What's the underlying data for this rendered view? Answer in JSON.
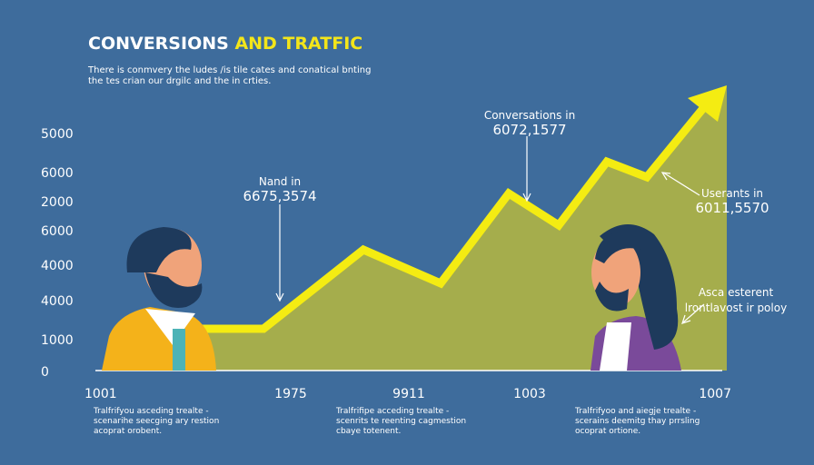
{
  "title_parts": [
    "CONVERSIONS",
    "AND TRATFIC"
  ],
  "subtitle": [
    "There is conmvery the ludes /is tile cates and conatical bnting",
    "the tes crian our drgilc and the in crties."
  ],
  "y_axis_labels": [
    "5000",
    "6000",
    "2000",
    "6000",
    "4000",
    "4000",
    "1000",
    "0"
  ],
  "x_axis_labels": [
    "1001",
    "1975",
    "9911",
    "1003",
    "1007"
  ],
  "annotations": [
    {
      "lines": [
        "Conversations in",
        "6072,1577"
      ]
    },
    {
      "lines": [
        "Nand in",
        "6675,3574"
      ]
    },
    {
      "lines": [
        "Userants in",
        "6011,5570"
      ]
    },
    {
      "lines": [
        "Asca esterent",
        "lrontlavost ir poloy"
      ]
    }
  ],
  "footnotes": [
    {
      "lines": [
        "Tralfrifyou asceding trealte -",
        "scenarihe seecging ary restion",
        "acoprat orobent."
      ]
    },
    {
      "lines": [
        "Tralfrifipe acceding trealte -",
        "scenrits te reenting cagmestion",
        "cbaye totenent."
      ]
    },
    {
      "lines": [
        "Tralfrifyoo and aiegje trealte -",
        "scerains deemitg thay prrsling",
        "ocoprat ortione."
      ]
    }
  ]
}
